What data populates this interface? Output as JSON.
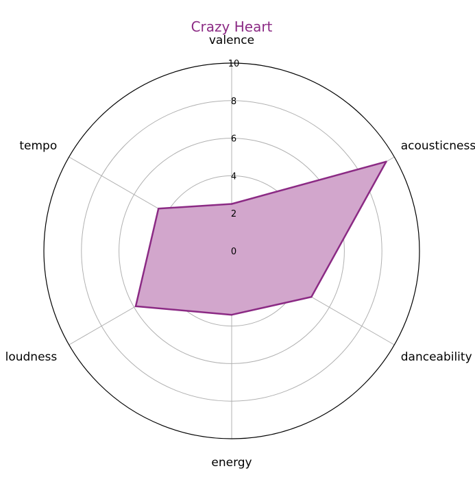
{
  "chart_data": {
    "type": "radar",
    "title": "Crazy Heart",
    "axes": [
      "valence",
      "acousticness",
      "danceability",
      "energy",
      "loudness",
      "tempo"
    ],
    "series": [
      {
        "values": [
          2.5,
          9.5,
          4.9,
          3.4,
          5.9,
          4.5
        ]
      }
    ],
    "r_ticks": [
      "0",
      "2",
      "4",
      "6",
      "8",
      "10"
    ],
    "rlim": [
      0,
      10
    ],
    "grid": true,
    "colors": {
      "series": "#8b2a84",
      "fill": "#d2a6cc",
      "grid": "#b0b0b0",
      "outer": "#000000",
      "title": "#8b2a84"
    }
  }
}
